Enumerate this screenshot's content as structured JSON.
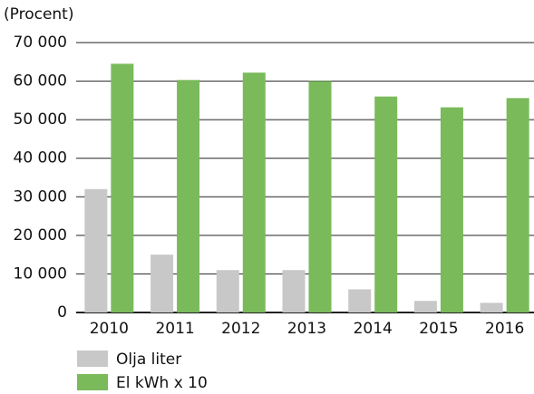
{
  "chart_data": {
    "type": "bar",
    "y_axis_label": "(Procent)",
    "categories": [
      "2010",
      "2011",
      "2012",
      "2013",
      "2014",
      "2015",
      "2016"
    ],
    "series": [
      {
        "name": "Olja liter",
        "color": "#c8c8c8",
        "values": [
          32000,
          15000,
          11000,
          11000,
          6000,
          3000,
          2500
        ]
      },
      {
        "name": "El kWh x 10",
        "color": "#7aba5b",
        "values": [
          64500,
          60300,
          62200,
          60000,
          56000,
          53200,
          55600
        ]
      }
    ],
    "ylim": [
      0,
      70000
    ],
    "yticks": [
      0,
      {
        "value": 10000,
        "label": "10 000"
      },
      {
        "value": 20000,
        "label": "20 000"
      },
      {
        "value": 30000,
        "label": "30 000"
      },
      {
        "value": 40000,
        "label": "40 000"
      },
      {
        "value": 50000,
        "label": "50 000"
      },
      {
        "value": 60000,
        "label": "60 000"
      },
      {
        "value": 70000,
        "label": "70 000"
      }
    ],
    "grid": true
  }
}
